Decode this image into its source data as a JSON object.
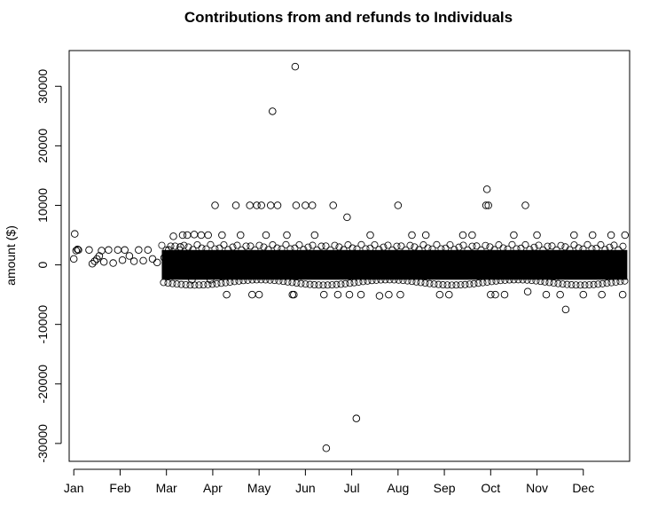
{
  "chart_data": {
    "type": "scatter",
    "title": "Contributions from and refunds to Individuals",
    "xlabel": "",
    "ylabel": "amount ($)",
    "x_ticks": [
      "Jan",
      "Feb",
      "Mar",
      "Apr",
      "May",
      "Jun",
      "Jul",
      "Aug",
      "Sep",
      "Oct",
      "Nov",
      "Dec"
    ],
    "y_ticks": [
      -30000,
      -20000,
      -10000,
      0,
      10000,
      20000,
      30000
    ],
    "xlim": [
      -0.1,
      12.0
    ],
    "ylim": [
      -33000,
      36000
    ],
    "marker": "open-circle",
    "grid": false,
    "dense_band": {
      "x_start": 1.9,
      "x_end": 11.95,
      "y_low": -2500,
      "y_high": 2500
    },
    "series": [
      {
        "points": [
          {
            "x": 0.02,
            "y": 5200
          },
          {
            "x": 0.0,
            "y": 1000
          },
          {
            "x": 0.05,
            "y": 2400
          },
          {
            "x": 0.1,
            "y": 2500
          },
          {
            "x": 0.08,
            "y": 2600
          },
          {
            "x": 0.33,
            "y": 2500
          },
          {
            "x": 0.4,
            "y": 200
          },
          {
            "x": 0.45,
            "y": 600
          },
          {
            "x": 0.5,
            "y": 1000
          },
          {
            "x": 0.55,
            "y": 1500
          },
          {
            "x": 0.6,
            "y": 2400
          },
          {
            "x": 0.65,
            "y": 500
          },
          {
            "x": 0.75,
            "y": 2500
          },
          {
            "x": 0.85,
            "y": 300
          },
          {
            "x": 0.95,
            "y": 2500
          },
          {
            "x": 1.05,
            "y": 800
          },
          {
            "x": 1.1,
            "y": 2500
          },
          {
            "x": 1.2,
            "y": 1500
          },
          {
            "x": 1.3,
            "y": 600
          },
          {
            "x": 1.4,
            "y": 2500
          },
          {
            "x": 1.5,
            "y": 700
          },
          {
            "x": 1.6,
            "y": 2500
          },
          {
            "x": 1.7,
            "y": 1000
          },
          {
            "x": 1.8,
            "y": 400
          },
          {
            "x": 1.95,
            "y": 1200
          },
          {
            "x": 2.05,
            "y": 2500
          },
          {
            "x": 2.15,
            "y": 4800
          },
          {
            "x": 2.3,
            "y": 3000
          },
          {
            "x": 2.35,
            "y": 5000
          },
          {
            "x": 2.45,
            "y": 5000
          },
          {
            "x": 2.55,
            "y": -2500
          },
          {
            "x": 2.6,
            "y": 5100
          },
          {
            "x": 2.75,
            "y": 5000
          },
          {
            "x": 2.9,
            "y": 5000
          },
          {
            "x": 2.95,
            "y": -2500
          },
          {
            "x": 3.05,
            "y": 10000
          },
          {
            "x": 3.2,
            "y": 5000
          },
          {
            "x": 3.3,
            "y": -5000
          },
          {
            "x": 3.5,
            "y": 10000
          },
          {
            "x": 3.6,
            "y": 5000
          },
          {
            "x": 3.8,
            "y": 10000
          },
          {
            "x": 3.85,
            "y": -5000
          },
          {
            "x": 3.95,
            "y": 10000
          },
          {
            "x": 4.0,
            "y": -5000
          },
          {
            "x": 4.05,
            "y": 10000
          },
          {
            "x": 4.15,
            "y": 5000
          },
          {
            "x": 4.25,
            "y": 10000
          },
          {
            "x": 4.4,
            "y": 10000
          },
          {
            "x": 4.29,
            "y": 25800
          },
          {
            "x": 4.6,
            "y": 5000
          },
          {
            "x": 4.72,
            "y": -5000
          },
          {
            "x": 4.75,
            "y": -5000
          },
          {
            "x": 4.8,
            "y": 10000
          },
          {
            "x": 4.78,
            "y": 33300
          },
          {
            "x": 5.0,
            "y": 10000
          },
          {
            "x": 5.15,
            "y": 10000
          },
          {
            "x": 5.2,
            "y": 5000
          },
          {
            "x": 5.4,
            "y": -5000
          },
          {
            "x": 5.45,
            "y": -30800
          },
          {
            "x": 5.6,
            "y": 10000
          },
          {
            "x": 5.7,
            "y": -5000
          },
          {
            "x": 5.9,
            "y": 8000
          },
          {
            "x": 5.95,
            "y": -5000
          },
          {
            "x": 6.1,
            "y": -25800
          },
          {
            "x": 6.2,
            "y": -5000
          },
          {
            "x": 6.4,
            "y": 5000
          },
          {
            "x": 6.6,
            "y": -5200
          },
          {
            "x": 6.8,
            "y": -5000
          },
          {
            "x": 7.0,
            "y": 10000
          },
          {
            "x": 7.05,
            "y": -5000
          },
          {
            "x": 7.3,
            "y": 5000
          },
          {
            "x": 7.6,
            "y": 5000
          },
          {
            "x": 7.9,
            "y": -5000
          },
          {
            "x": 8.1,
            "y": -5000
          },
          {
            "x": 8.4,
            "y": 5000
          },
          {
            "x": 8.6,
            "y": 5000
          },
          {
            "x": 8.9,
            "y": 10000
          },
          {
            "x": 8.92,
            "y": 12700
          },
          {
            "x": 8.95,
            "y": 10000
          },
          {
            "x": 9.0,
            "y": -5000
          },
          {
            "x": 9.1,
            "y": -5000
          },
          {
            "x": 9.3,
            "y": -5000
          },
          {
            "x": 9.5,
            "y": 5000
          },
          {
            "x": 9.75,
            "y": 10000
          },
          {
            "x": 9.8,
            "y": -4500
          },
          {
            "x": 10.0,
            "y": 5000
          },
          {
            "x": 10.2,
            "y": -5000
          },
          {
            "x": 10.5,
            "y": -5000
          },
          {
            "x": 10.62,
            "y": -7500
          },
          {
            "x": 10.8,
            "y": 5000
          },
          {
            "x": 11.0,
            "y": -5000
          },
          {
            "x": 11.2,
            "y": 5000
          },
          {
            "x": 11.4,
            "y": -5000
          },
          {
            "x": 11.6,
            "y": 5000
          },
          {
            "x": 11.85,
            "y": -5000
          },
          {
            "x": 11.9,
            "y": 5000
          }
        ]
      }
    ]
  }
}
